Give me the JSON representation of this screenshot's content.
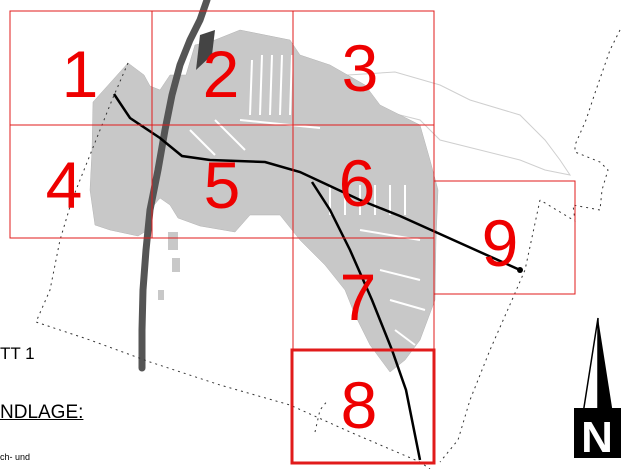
{
  "map": {
    "sheets": [
      {
        "id": "1",
        "selected": false
      },
      {
        "id": "2",
        "selected": false
      },
      {
        "id": "3",
        "selected": false
      },
      {
        "id": "4",
        "selected": false
      },
      {
        "id": "5",
        "selected": false
      },
      {
        "id": "6",
        "selected": false
      },
      {
        "id": "7",
        "selected": false
      },
      {
        "id": "8",
        "selected": true
      },
      {
        "id": "9",
        "selected": false
      }
    ],
    "colors": {
      "grid": "#e11b1b",
      "numbers": "#ee0000",
      "built_area": "#c8c8c8",
      "river": "#555555",
      "road": "#000000"
    },
    "north_arrow_letter": "N"
  },
  "legend": {
    "sheet_label": "TT 1",
    "basis_heading": "NDLAGE:",
    "note": "ch- und"
  }
}
